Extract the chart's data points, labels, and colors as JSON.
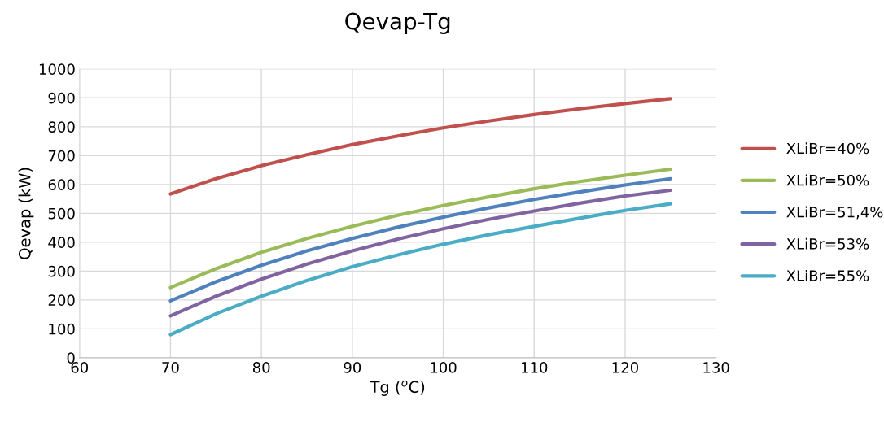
{
  "chart_data": {
    "type": "line",
    "title": "Qevap-Tg",
    "xlabel": "Tg ($^{o}$C)",
    "ylabel": "Qevap (kW)",
    "x": [
      70,
      75,
      80,
      85,
      90,
      95,
      100,
      105,
      110,
      115,
      120,
      125
    ],
    "series": [
      {
        "name": "XLiBr=40%",
        "color": "#c0504d",
        "values": [
          567,
          620,
          665,
          703,
          738,
          768,
          796,
          820,
          842,
          862,
          880,
          897
        ]
      },
      {
        "name": "XLiBr=50%",
        "color": "#9bbb59",
        "values": [
          243,
          308,
          365,
          413,
          455,
          493,
          527,
          557,
          585,
          610,
          632,
          653
        ]
      },
      {
        "name": "XLiBr=51,4%",
        "color": "#4f81bd",
        "values": [
          197,
          263,
          320,
          370,
          413,
          452,
          487,
          519,
          548,
          574,
          598,
          620
        ]
      },
      {
        "name": "XLiBr=53%",
        "color": "#8064a2",
        "values": [
          145,
          213,
          272,
          324,
          370,
          411,
          447,
          479,
          508,
          535,
          560,
          580
        ]
      },
      {
        "name": "XLiBr=55%",
        "color": "#4bacc6",
        "values": [
          80,
          152,
          213,
          267,
          315,
          356,
          393,
          426,
          455,
          483,
          510,
          533
        ]
      }
    ],
    "xlim": [
      60,
      130
    ],
    "xticks": [
      60,
      70,
      80,
      90,
      100,
      110,
      120,
      130
    ],
    "ylim": [
      0,
      1000
    ],
    "yticks": [
      0,
      100,
      200,
      300,
      400,
      500,
      600,
      700,
      800,
      900,
      1000
    ],
    "grid": true,
    "legend": "right",
    "marker": "none",
    "line_style": "solid"
  }
}
